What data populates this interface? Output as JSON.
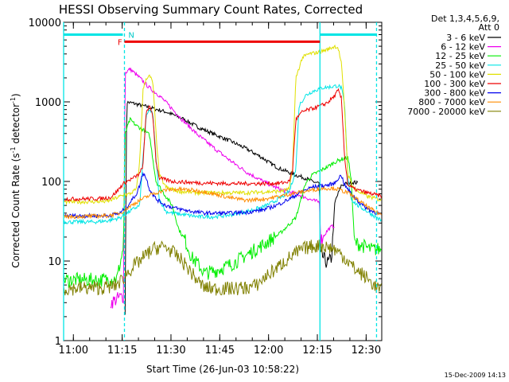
{
  "chart_data": {
    "type": "line",
    "title": "HESSI Observing Summary Count Rates, Corrected",
    "ylabel": "Corrected Count Rate (s",
    "ylabel_sup": "-1",
    "ylabel_mid": " detector",
    "ylabel_sup2": "-1",
    "ylabel_end": ")",
    "xlabel": "Start Time (26-Jun-03 10:58:22)",
    "footer": "15-Dec-2009 14:13",
    "y_scale": "log",
    "ylim": [
      1,
      10000
    ],
    "xlim_min": [
      -1.4,
      96.4
    ],
    "y_ticks": [
      {
        "v": 1,
        "label": "1"
      },
      {
        "v": 10,
        "label": "10"
      },
      {
        "v": 100,
        "label": "100"
      },
      {
        "v": 1000,
        "label": "1000"
      },
      {
        "v": 10000,
        "label": "10000"
      }
    ],
    "x_ticks": [
      {
        "v": 1.6,
        "label": "11:00"
      },
      {
        "v": 16.6,
        "label": "11:15"
      },
      {
        "v": 31.6,
        "label": "11:30"
      },
      {
        "v": 46.6,
        "label": "11:45"
      },
      {
        "v": 61.6,
        "label": "12:00"
      },
      {
        "v": 76.6,
        "label": "12:15"
      },
      {
        "v": 91.6,
        "label": "12:30"
      }
    ],
    "legend_header": [
      "Det 1,3,4,5,6,9,",
      "Att 0"
    ],
    "legend_placement": "right",
    "series": [
      {
        "name": "3 - 6 keV",
        "color": "#000000",
        "points": [
          [
            17.5,
            2.6
          ],
          [
            18,
            990
          ],
          [
            20,
            960
          ],
          [
            25,
            850
          ],
          [
            30,
            750
          ],
          [
            35,
            620
          ],
          [
            40,
            480
          ],
          [
            45,
            390
          ],
          [
            50,
            320
          ],
          [
            55,
            255
          ],
          [
            60,
            195
          ],
          [
            62,
            170
          ],
          [
            65,
            145
          ],
          [
            70,
            120
          ],
          [
            73,
            110
          ],
          [
            75,
            100
          ],
          [
            77.3,
            95
          ],
          [
            77.5,
            11
          ],
          [
            78,
            12
          ],
          [
            79,
            10
          ],
          [
            80,
            9.5
          ],
          [
            81,
            11
          ],
          [
            82,
            55
          ],
          [
            84,
            90
          ],
          [
            86,
            95
          ],
          [
            88,
            98
          ],
          [
            89,
            95
          ]
        ]
      },
      {
        "name": "6 - 12 keV",
        "color": "#ee00ee",
        "points": [
          [
            13,
            3
          ],
          [
            16,
            3.5
          ],
          [
            17,
            3.6
          ],
          [
            17.5,
            2300
          ],
          [
            19,
            2600
          ],
          [
            22,
            2000
          ],
          [
            25,
            1500
          ],
          [
            28,
            1200
          ],
          [
            31,
            900
          ],
          [
            35,
            600
          ],
          [
            40,
            380
          ],
          [
            45,
            260
          ],
          [
            50,
            180
          ],
          [
            55,
            130
          ],
          [
            60,
            100
          ],
          [
            65,
            80
          ],
          [
            70,
            70
          ],
          [
            73,
            63
          ],
          [
            75,
            58
          ],
          [
            77.3,
            55
          ],
          [
            77.6,
            18
          ],
          [
            79,
            22
          ],
          [
            80,
            25
          ],
          [
            81,
            27
          ],
          [
            82,
            28
          ]
        ]
      },
      {
        "name": "12 - 25 keV",
        "color": "#00ee00",
        "points": [
          [
            -1.4,
            5.8
          ],
          [
            10,
            5.8
          ],
          [
            15,
            6
          ],
          [
            17,
            15
          ],
          [
            17.5,
            400
          ],
          [
            19,
            600
          ],
          [
            21,
            500
          ],
          [
            23,
            450
          ],
          [
            25,
            380
          ],
          [
            27,
            100
          ],
          [
            30,
            65
          ],
          [
            32,
            50
          ],
          [
            34,
            25
          ],
          [
            36,
            18
          ],
          [
            38,
            11
          ],
          [
            40,
            9
          ],
          [
            42,
            7
          ],
          [
            45,
            7.5
          ],
          [
            50,
            9
          ],
          [
            55,
            12
          ],
          [
            60,
            16
          ],
          [
            65,
            22
          ],
          [
            70,
            35
          ],
          [
            73,
            95
          ],
          [
            75,
            120
          ],
          [
            78,
            140
          ],
          [
            80,
            155
          ],
          [
            82,
            175
          ],
          [
            84,
            190
          ],
          [
            86,
            200
          ],
          [
            87,
            110
          ],
          [
            88,
            17
          ],
          [
            90,
            16
          ],
          [
            93,
            14
          ],
          [
            96.4,
            14
          ]
        ]
      },
      {
        "name": "25 - 50 keV",
        "color": "#00e5e5",
        "points": [
          [
            -1.4,
            31
          ],
          [
            8,
            31
          ],
          [
            12,
            32
          ],
          [
            16,
            35
          ],
          [
            20,
            45
          ],
          [
            22,
            50
          ],
          [
            23,
            200
          ],
          [
            24,
            650
          ],
          [
            25,
            800
          ],
          [
            26,
            700
          ],
          [
            27,
            200
          ],
          [
            28,
            60
          ],
          [
            30,
            42
          ],
          [
            32,
            40
          ],
          [
            36,
            38
          ],
          [
            40,
            36
          ],
          [
            45,
            36
          ],
          [
            50,
            38
          ],
          [
            55,
            42
          ],
          [
            60,
            48
          ],
          [
            63,
            55
          ],
          [
            66,
            65
          ],
          [
            68,
            75
          ],
          [
            70,
            140
          ],
          [
            71,
            900
          ],
          [
            73,
            1200
          ],
          [
            75,
            1350
          ],
          [
            78,
            1500
          ],
          [
            81,
            1550
          ],
          [
            83,
            1600
          ],
          [
            84,
            1500
          ],
          [
            85,
            900
          ],
          [
            86,
            110
          ],
          [
            87,
            60
          ],
          [
            89,
            50
          ],
          [
            92,
            42
          ],
          [
            96.4,
            32
          ]
        ]
      },
      {
        "name": "50 - 100 keV",
        "color": "#e0e000",
        "points": [
          [
            -1.4,
            55
          ],
          [
            12,
            56
          ],
          [
            16,
            65
          ],
          [
            19,
            70
          ],
          [
            21,
            80
          ],
          [
            22,
            180
          ],
          [
            23,
            1400
          ],
          [
            24,
            2000
          ],
          [
            25,
            2100
          ],
          [
            26,
            1800
          ],
          [
            27,
            400
          ],
          [
            28,
            120
          ],
          [
            30,
            85
          ],
          [
            34,
            75
          ],
          [
            40,
            72
          ],
          [
            45,
            72
          ],
          [
            50,
            72
          ],
          [
            55,
            72
          ],
          [
            60,
            74
          ],
          [
            65,
            75
          ],
          [
            68,
            80
          ],
          [
            69,
            150
          ],
          [
            70,
            2000
          ],
          [
            72,
            3600
          ],
          [
            74,
            4000
          ],
          [
            77,
            4200
          ],
          [
            80,
            4600
          ],
          [
            82,
            5000
          ],
          [
            83,
            4800
          ],
          [
            84,
            3000
          ],
          [
            85,
            800
          ],
          [
            86,
            120
          ],
          [
            88,
            80
          ],
          [
            92,
            65
          ],
          [
            96.4,
            58
          ]
        ]
      },
      {
        "name": "100 - 300 keV",
        "color": "#ee0000",
        "points": [
          [
            -1.4,
            60
          ],
          [
            10,
            61
          ],
          [
            13,
            63
          ],
          [
            15,
            75
          ],
          [
            17,
            95
          ],
          [
            20,
            110
          ],
          [
            22,
            125
          ],
          [
            23,
            160
          ],
          [
            24,
            780
          ],
          [
            25,
            850
          ],
          [
            26,
            700
          ],
          [
            27,
            180
          ],
          [
            28,
            110
          ],
          [
            32,
            100
          ],
          [
            36,
            98
          ],
          [
            40,
            96
          ],
          [
            45,
            95
          ],
          [
            50,
            94
          ],
          [
            55,
            94
          ],
          [
            60,
            94
          ],
          [
            65,
            95
          ],
          [
            68,
            100
          ],
          [
            69,
            140
          ],
          [
            70,
            600
          ],
          [
            72,
            750
          ],
          [
            74,
            800
          ],
          [
            76,
            850
          ],
          [
            78,
            900
          ],
          [
            80,
            1000
          ],
          [
            82,
            1200
          ],
          [
            83,
            1400
          ],
          [
            84,
            1100
          ],
          [
            85,
            200
          ],
          [
            86,
            90
          ],
          [
            88,
            80
          ],
          [
            92,
            72
          ],
          [
            96.4,
            65
          ]
        ]
      },
      {
        "name": "300 - 800 keV",
        "color": "#0000ee",
        "points": [
          [
            -1.4,
            37
          ],
          [
            12,
            37
          ],
          [
            16,
            40
          ],
          [
            18,
            48
          ],
          [
            21,
            70
          ],
          [
            22,
            90
          ],
          [
            23,
            130
          ],
          [
            24,
            110
          ],
          [
            25,
            80
          ],
          [
            27,
            60
          ],
          [
            30,
            50
          ],
          [
            34,
            45
          ],
          [
            38,
            42
          ],
          [
            42,
            40
          ],
          [
            46,
            40
          ],
          [
            50,
            40
          ],
          [
            55,
            41
          ],
          [
            60,
            44
          ],
          [
            64,
            50
          ],
          [
            68,
            60
          ],
          [
            72,
            75
          ],
          [
            75,
            85
          ],
          [
            78,
            88
          ],
          [
            80,
            90
          ],
          [
            82,
            95
          ],
          [
            83,
            110
          ],
          [
            84,
            120
          ],
          [
            85,
            90
          ],
          [
            87,
            70
          ],
          [
            90,
            52
          ],
          [
            93,
            43
          ],
          [
            96.4,
            38
          ]
        ]
      },
      {
        "name": "800 - 7000 keV",
        "color": "#ff8c00",
        "points": [
          [
            -1.4,
            36
          ],
          [
            12,
            37
          ],
          [
            16,
            40
          ],
          [
            18,
            46
          ],
          [
            22,
            58
          ],
          [
            26,
            70
          ],
          [
            30,
            78
          ],
          [
            34,
            80
          ],
          [
            38,
            78
          ],
          [
            42,
            74
          ],
          [
            46,
            68
          ],
          [
            50,
            62
          ],
          [
            55,
            58
          ],
          [
            60,
            60
          ],
          [
            65,
            65
          ],
          [
            70,
            72
          ],
          [
            75,
            78
          ],
          [
            78,
            82
          ],
          [
            82,
            82
          ],
          [
            86,
            72
          ],
          [
            90,
            55
          ],
          [
            93,
            45
          ],
          [
            96.4,
            38
          ]
        ]
      },
      {
        "name": "7000 - 20000 keV",
        "color": "#808000",
        "points": [
          [
            -1.4,
            4.5
          ],
          [
            10,
            4.6
          ],
          [
            14,
            4.8
          ],
          [
            16,
            5.5
          ],
          [
            18,
            7
          ],
          [
            20,
            8.5
          ],
          [
            22,
            10
          ],
          [
            24,
            12
          ],
          [
            26,
            14
          ],
          [
            28,
            15
          ],
          [
            30,
            15
          ],
          [
            32,
            13
          ],
          [
            34,
            11
          ],
          [
            36,
            9
          ],
          [
            38,
            7
          ],
          [
            40,
            5.5
          ],
          [
            42,
            4.6
          ],
          [
            45,
            4.5
          ],
          [
            50,
            4.5
          ],
          [
            55,
            4.6
          ],
          [
            58,
            5
          ],
          [
            60,
            6
          ],
          [
            62,
            7
          ],
          [
            64,
            8
          ],
          [
            66,
            9.5
          ],
          [
            68,
            11
          ],
          [
            70,
            12.5
          ],
          [
            72,
            14
          ],
          [
            74,
            15
          ],
          [
            76,
            15.5
          ],
          [
            78,
            15.5
          ],
          [
            80,
            15
          ],
          [
            82,
            14
          ],
          [
            84,
            12
          ],
          [
            86,
            10
          ],
          [
            88,
            8
          ],
          [
            90,
            7
          ],
          [
            92,
            6
          ],
          [
            94,
            5
          ],
          [
            96.4,
            4.2
          ]
        ]
      }
    ],
    "noise_seed": 7,
    "vlines": [
      {
        "x": -1.4,
        "style": "solid"
      },
      {
        "x": 17.3,
        "style": "dashed"
      },
      {
        "x": 77.4,
        "style": "solid"
      },
      {
        "x": 94.8,
        "style": "dashed"
      }
    ],
    "annotations": {
      "cyan_bars": [
        [
          -1.4,
          16.8
        ],
        [
          77.4,
          94.8
        ]
      ],
      "cyan_bar_y": 7000,
      "red_bar": [
        17.3,
        77.4
      ],
      "red_bar_y": 5700,
      "flag_n": {
        "x": 18.5,
        "text": "N"
      },
      "flag_f": {
        "x": 15.2,
        "text": "F"
      }
    },
    "grid": false
  }
}
